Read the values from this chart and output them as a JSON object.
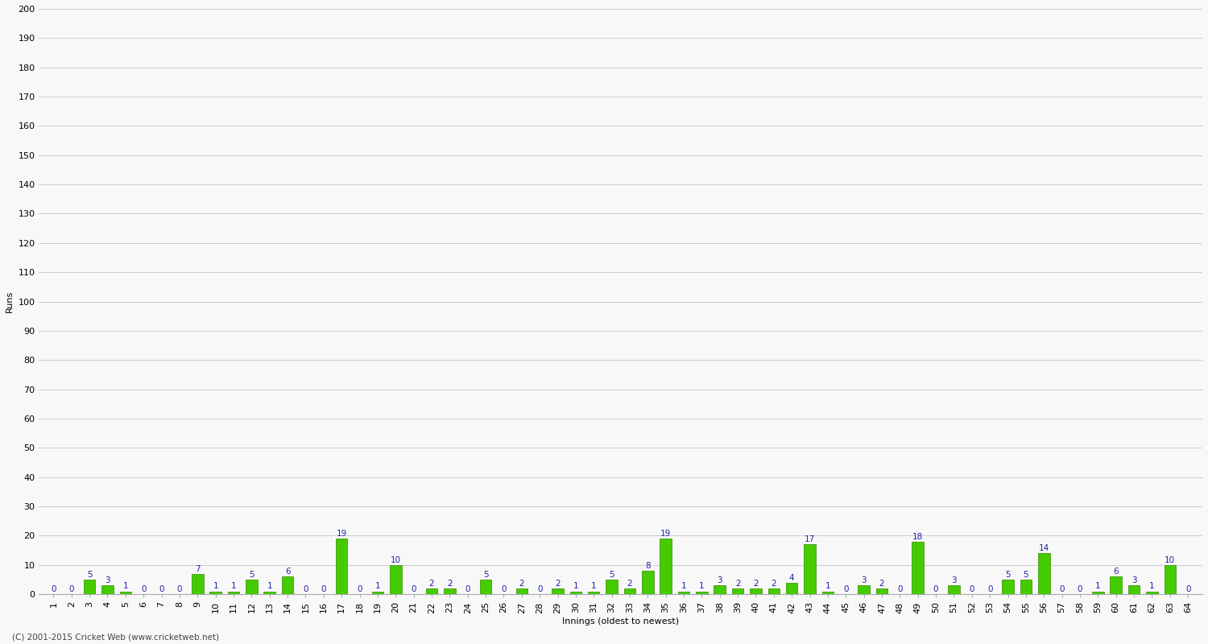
{
  "xlabel": "Innings (oldest to newest)",
  "ylabel": "Runs",
  "ylim": [
    0,
    200
  ],
  "yticks": [
    0,
    10,
    20,
    30,
    40,
    50,
    60,
    70,
    80,
    90,
    100,
    110,
    120,
    130,
    140,
    150,
    160,
    170,
    180,
    190,
    200
  ],
  "innings_labels": [
    "1",
    "2",
    "3",
    "4",
    "5",
    "6",
    "7",
    "8",
    "9",
    "10",
    "11",
    "12",
    "13",
    "14",
    "15",
    "16",
    "17",
    "18",
    "19",
    "20",
    "21",
    "22",
    "23",
    "24",
    "25",
    "26",
    "27",
    "28",
    "29",
    "30",
    "31",
    "32",
    "33",
    "34",
    "35",
    "36",
    "37",
    "38",
    "39",
    "40",
    "41",
    "42",
    "43",
    "44",
    "45",
    "46",
    "47",
    "48",
    "49",
    "50",
    "51",
    "52",
    "53",
    "54",
    "55",
    "56",
    "57",
    "58",
    "59",
    "60",
    "61",
    "62",
    "63",
    "64"
  ],
  "values": [
    0,
    0,
    5,
    3,
    1,
    0,
    0,
    0,
    7,
    1,
    1,
    5,
    1,
    6,
    0,
    0,
    19,
    0,
    1,
    10,
    0,
    2,
    2,
    0,
    5,
    0,
    2,
    0,
    2,
    1,
    1,
    5,
    2,
    8,
    19,
    1,
    1,
    3,
    2,
    2,
    2,
    4,
    17,
    1,
    0,
    3,
    2,
    0,
    18,
    0,
    3,
    0,
    0,
    5,
    5,
    14,
    0,
    0,
    1,
    6,
    3,
    1,
    10,
    0
  ],
  "bar_color": "#44cc00",
  "bar_edge_color": "#338800",
  "label_color": "#2222aa",
  "background_color": "#f8f8f8",
  "grid_color": "#cccccc",
  "footer_text": "(C) 2001-2015 Cricket Web (www.cricketweb.net)",
  "label_fontsize": 7.5,
  "axis_label_fontsize": 8,
  "tick_fontsize": 8,
  "footer_fontsize": 7.5
}
